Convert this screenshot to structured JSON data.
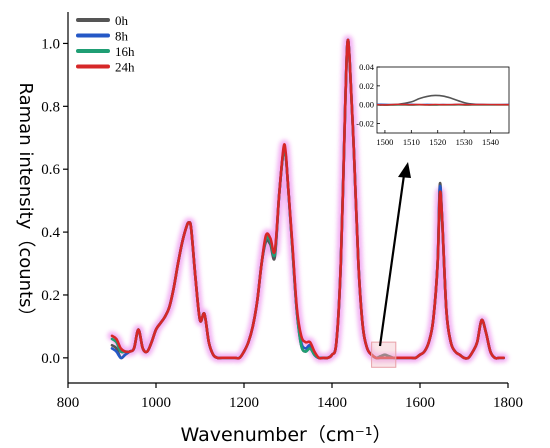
{
  "chart_data": {
    "type": "line",
    "title": "",
    "xlabel": "Wavenumber（cm⁻¹）",
    "ylabel": "Raman intensity（counts）",
    "xlim": [
      800,
      1800
    ],
    "ylim": [
      -0.08,
      1.1
    ],
    "x_ticks": [
      "800",
      "1000",
      "1200",
      "1400",
      "1600",
      "1800"
    ],
    "y_ticks": [
      "0.0",
      "0.2",
      "0.4",
      "0.6",
      "0.8",
      "1.0"
    ],
    "grid": false,
    "legend_position": "top-left",
    "colors": {
      "0h": "#555555",
      "8h": "#2458c6",
      "16h": "#1f9e74",
      "24h": "#d62728",
      "highlight_box": "#e8a0a8",
      "glow": "#f0a0f0"
    },
    "x": [
      900,
      910,
      920,
      930,
      940,
      950,
      960,
      970,
      980,
      990,
      1000,
      1010,
      1020,
      1030,
      1040,
      1050,
      1060,
      1070,
      1075,
      1080,
      1090,
      1100,
      1110,
      1120,
      1130,
      1140,
      1150,
      1160,
      1170,
      1180,
      1190,
      1200,
      1210,
      1220,
      1230,
      1240,
      1250,
      1260,
      1270,
      1280,
      1290,
      1295,
      1300,
      1310,
      1320,
      1330,
      1340,
      1350,
      1360,
      1370,
      1380,
      1390,
      1400,
      1410,
      1420,
      1430,
      1435,
      1440,
      1450,
      1460,
      1470,
      1480,
      1490,
      1500,
      1510,
      1520,
      1530,
      1540,
      1550,
      1560,
      1570,
      1580,
      1590,
      1600,
      1610,
      1620,
      1630,
      1640,
      1645,
      1650,
      1660,
      1670,
      1680,
      1690,
      1700,
      1710,
      1720,
      1730,
      1740,
      1750,
      1760,
      1770,
      1780,
      1790
    ],
    "series": [
      {
        "name": "0h",
        "values": [
          0.04,
          0.03,
          0.0,
          0.01,
          0.02,
          0.03,
          0.09,
          0.03,
          0.02,
          0.05,
          0.09,
          0.11,
          0.13,
          0.16,
          0.22,
          0.3,
          0.37,
          0.42,
          0.43,
          0.41,
          0.25,
          0.12,
          0.14,
          0.05,
          0.01,
          0.0,
          0.0,
          0.0,
          0.0,
          0.0,
          0.0,
          0.02,
          0.05,
          0.1,
          0.18,
          0.3,
          0.37,
          0.36,
          0.32,
          0.52,
          0.66,
          0.64,
          0.55,
          0.35,
          0.15,
          0.04,
          0.02,
          0.04,
          0.01,
          0.0,
          0.0,
          0.0,
          0.01,
          0.05,
          0.3,
          0.8,
          1.0,
          0.95,
          0.65,
          0.3,
          0.1,
          0.03,
          0.01,
          0.0,
          0.005,
          0.01,
          0.005,
          0.0,
          0.0,
          0.0,
          0.0,
          0.0,
          0.0,
          0.01,
          0.02,
          0.05,
          0.12,
          0.3,
          0.55,
          0.45,
          0.15,
          0.05,
          0.02,
          0.01,
          0.0,
          0.0,
          0.02,
          0.05,
          0.12,
          0.08,
          0.02,
          0.0,
          0.0,
          0.0
        ]
      },
      {
        "name": "8h",
        "values": [
          0.03,
          0.02,
          0.0,
          0.01,
          0.02,
          0.03,
          0.09,
          0.03,
          0.02,
          0.05,
          0.09,
          0.11,
          0.13,
          0.16,
          0.22,
          0.3,
          0.37,
          0.42,
          0.43,
          0.41,
          0.25,
          0.12,
          0.14,
          0.05,
          0.01,
          0.0,
          0.0,
          0.0,
          0.0,
          0.0,
          0.0,
          0.02,
          0.05,
          0.1,
          0.18,
          0.3,
          0.38,
          0.37,
          0.33,
          0.52,
          0.66,
          0.64,
          0.55,
          0.35,
          0.15,
          0.05,
          0.03,
          0.04,
          0.01,
          0.0,
          0.0,
          0.0,
          0.01,
          0.05,
          0.3,
          0.8,
          1.0,
          0.95,
          0.65,
          0.3,
          0.1,
          0.03,
          0.01,
          0.0,
          0.0,
          0.0,
          0.0,
          0.0,
          0.0,
          0.0,
          0.0,
          0.0,
          0.0,
          0.01,
          0.02,
          0.05,
          0.12,
          0.3,
          0.54,
          0.45,
          0.15,
          0.05,
          0.02,
          0.01,
          0.0,
          0.0,
          0.02,
          0.05,
          0.12,
          0.08,
          0.02,
          0.0,
          0.0,
          0.0
        ]
      },
      {
        "name": "16h",
        "values": [
          0.06,
          0.05,
          0.02,
          0.02,
          0.02,
          0.03,
          0.09,
          0.03,
          0.02,
          0.05,
          0.09,
          0.11,
          0.13,
          0.16,
          0.22,
          0.3,
          0.37,
          0.42,
          0.43,
          0.41,
          0.25,
          0.12,
          0.14,
          0.05,
          0.01,
          0.0,
          0.0,
          0.0,
          0.0,
          0.0,
          0.0,
          0.02,
          0.05,
          0.1,
          0.18,
          0.3,
          0.38,
          0.37,
          0.33,
          0.52,
          0.66,
          0.64,
          0.55,
          0.35,
          0.15,
          0.04,
          0.02,
          0.03,
          0.01,
          0.0,
          0.0,
          0.0,
          0.01,
          0.05,
          0.3,
          0.8,
          1.0,
          0.95,
          0.65,
          0.3,
          0.1,
          0.03,
          0.01,
          0.0,
          0.0,
          0.0,
          0.0,
          0.0,
          0.0,
          0.0,
          0.0,
          0.0,
          0.0,
          0.01,
          0.02,
          0.05,
          0.12,
          0.3,
          0.52,
          0.45,
          0.15,
          0.05,
          0.02,
          0.01,
          0.0,
          0.0,
          0.02,
          0.05,
          0.12,
          0.08,
          0.02,
          0.0,
          0.0,
          0.0
        ]
      },
      {
        "name": "24h",
        "values": [
          0.07,
          0.06,
          0.03,
          0.02,
          0.02,
          0.03,
          0.09,
          0.03,
          0.02,
          0.05,
          0.09,
          0.11,
          0.13,
          0.16,
          0.22,
          0.3,
          0.37,
          0.42,
          0.43,
          0.41,
          0.25,
          0.12,
          0.14,
          0.05,
          0.01,
          0.0,
          0.0,
          0.0,
          0.0,
          0.0,
          0.0,
          0.02,
          0.05,
          0.1,
          0.18,
          0.3,
          0.39,
          0.38,
          0.34,
          0.52,
          0.67,
          0.65,
          0.55,
          0.36,
          0.16,
          0.07,
          0.05,
          0.05,
          0.02,
          0.0,
          0.0,
          0.0,
          0.01,
          0.05,
          0.3,
          0.8,
          1.0,
          0.95,
          0.65,
          0.3,
          0.1,
          0.03,
          0.01,
          0.0,
          0.0,
          0.0,
          0.0,
          0.0,
          0.0,
          0.0,
          0.0,
          0.0,
          0.0,
          0.01,
          0.02,
          0.05,
          0.12,
          0.3,
          0.52,
          0.45,
          0.15,
          0.05,
          0.02,
          0.01,
          0.0,
          0.0,
          0.02,
          0.05,
          0.12,
          0.08,
          0.02,
          0.0,
          0.0,
          0.0
        ]
      }
    ],
    "inset": {
      "xlim": [
        1497,
        1547
      ],
      "ylim": [
        -0.03,
        0.04
      ],
      "x_ticks": [
        "1500",
        "1510",
        "1520",
        "1530",
        "1540"
      ],
      "y_ticks": [
        "0.04",
        "0.02",
        "0.00",
        "-0.02"
      ],
      "x": [
        1497,
        1500,
        1505,
        1510,
        1513,
        1516,
        1519,
        1522,
        1525,
        1528,
        1531,
        1535,
        1540,
        1547
      ],
      "series": [
        {
          "name": "0h",
          "values": [
            0.0,
            0.0,
            0.0005,
            0.003,
            0.0065,
            0.0088,
            0.0098,
            0.0092,
            0.007,
            0.004,
            0.0015,
            0.0003,
            0.0,
            0.0
          ]
        },
        {
          "name": "8h",
          "values": [
            0.0005,
            0.0003,
            0.0,
            0.0004,
            0.0,
            0.0003,
            0.0,
            0.0002,
            0.0,
            0.0003,
            0.0,
            0.0002,
            0.0,
            0.0003
          ]
        },
        {
          "name": "16h",
          "values": [
            -0.0003,
            -0.0005,
            -0.0002,
            -0.0004,
            -0.0001,
            -0.0003,
            -0.0004,
            -0.0002,
            -0.0003,
            -0.0001,
            -0.0004,
            -0.0002,
            -0.0003,
            -0.0002
          ]
        },
        {
          "name": "24h",
          "values": [
            0.0,
            -0.0002,
            0.0003,
            0.0,
            0.0002,
            -0.0001,
            0.0002,
            0.0,
            0.0001,
            0.0003,
            0.0,
            0.0002,
            0.0001,
            0.0
          ]
        }
      ],
      "highlight_range_x": [
        1490,
        1545
      ],
      "highlight_range_y": [
        -0.03,
        0.05
      ]
    }
  }
}
